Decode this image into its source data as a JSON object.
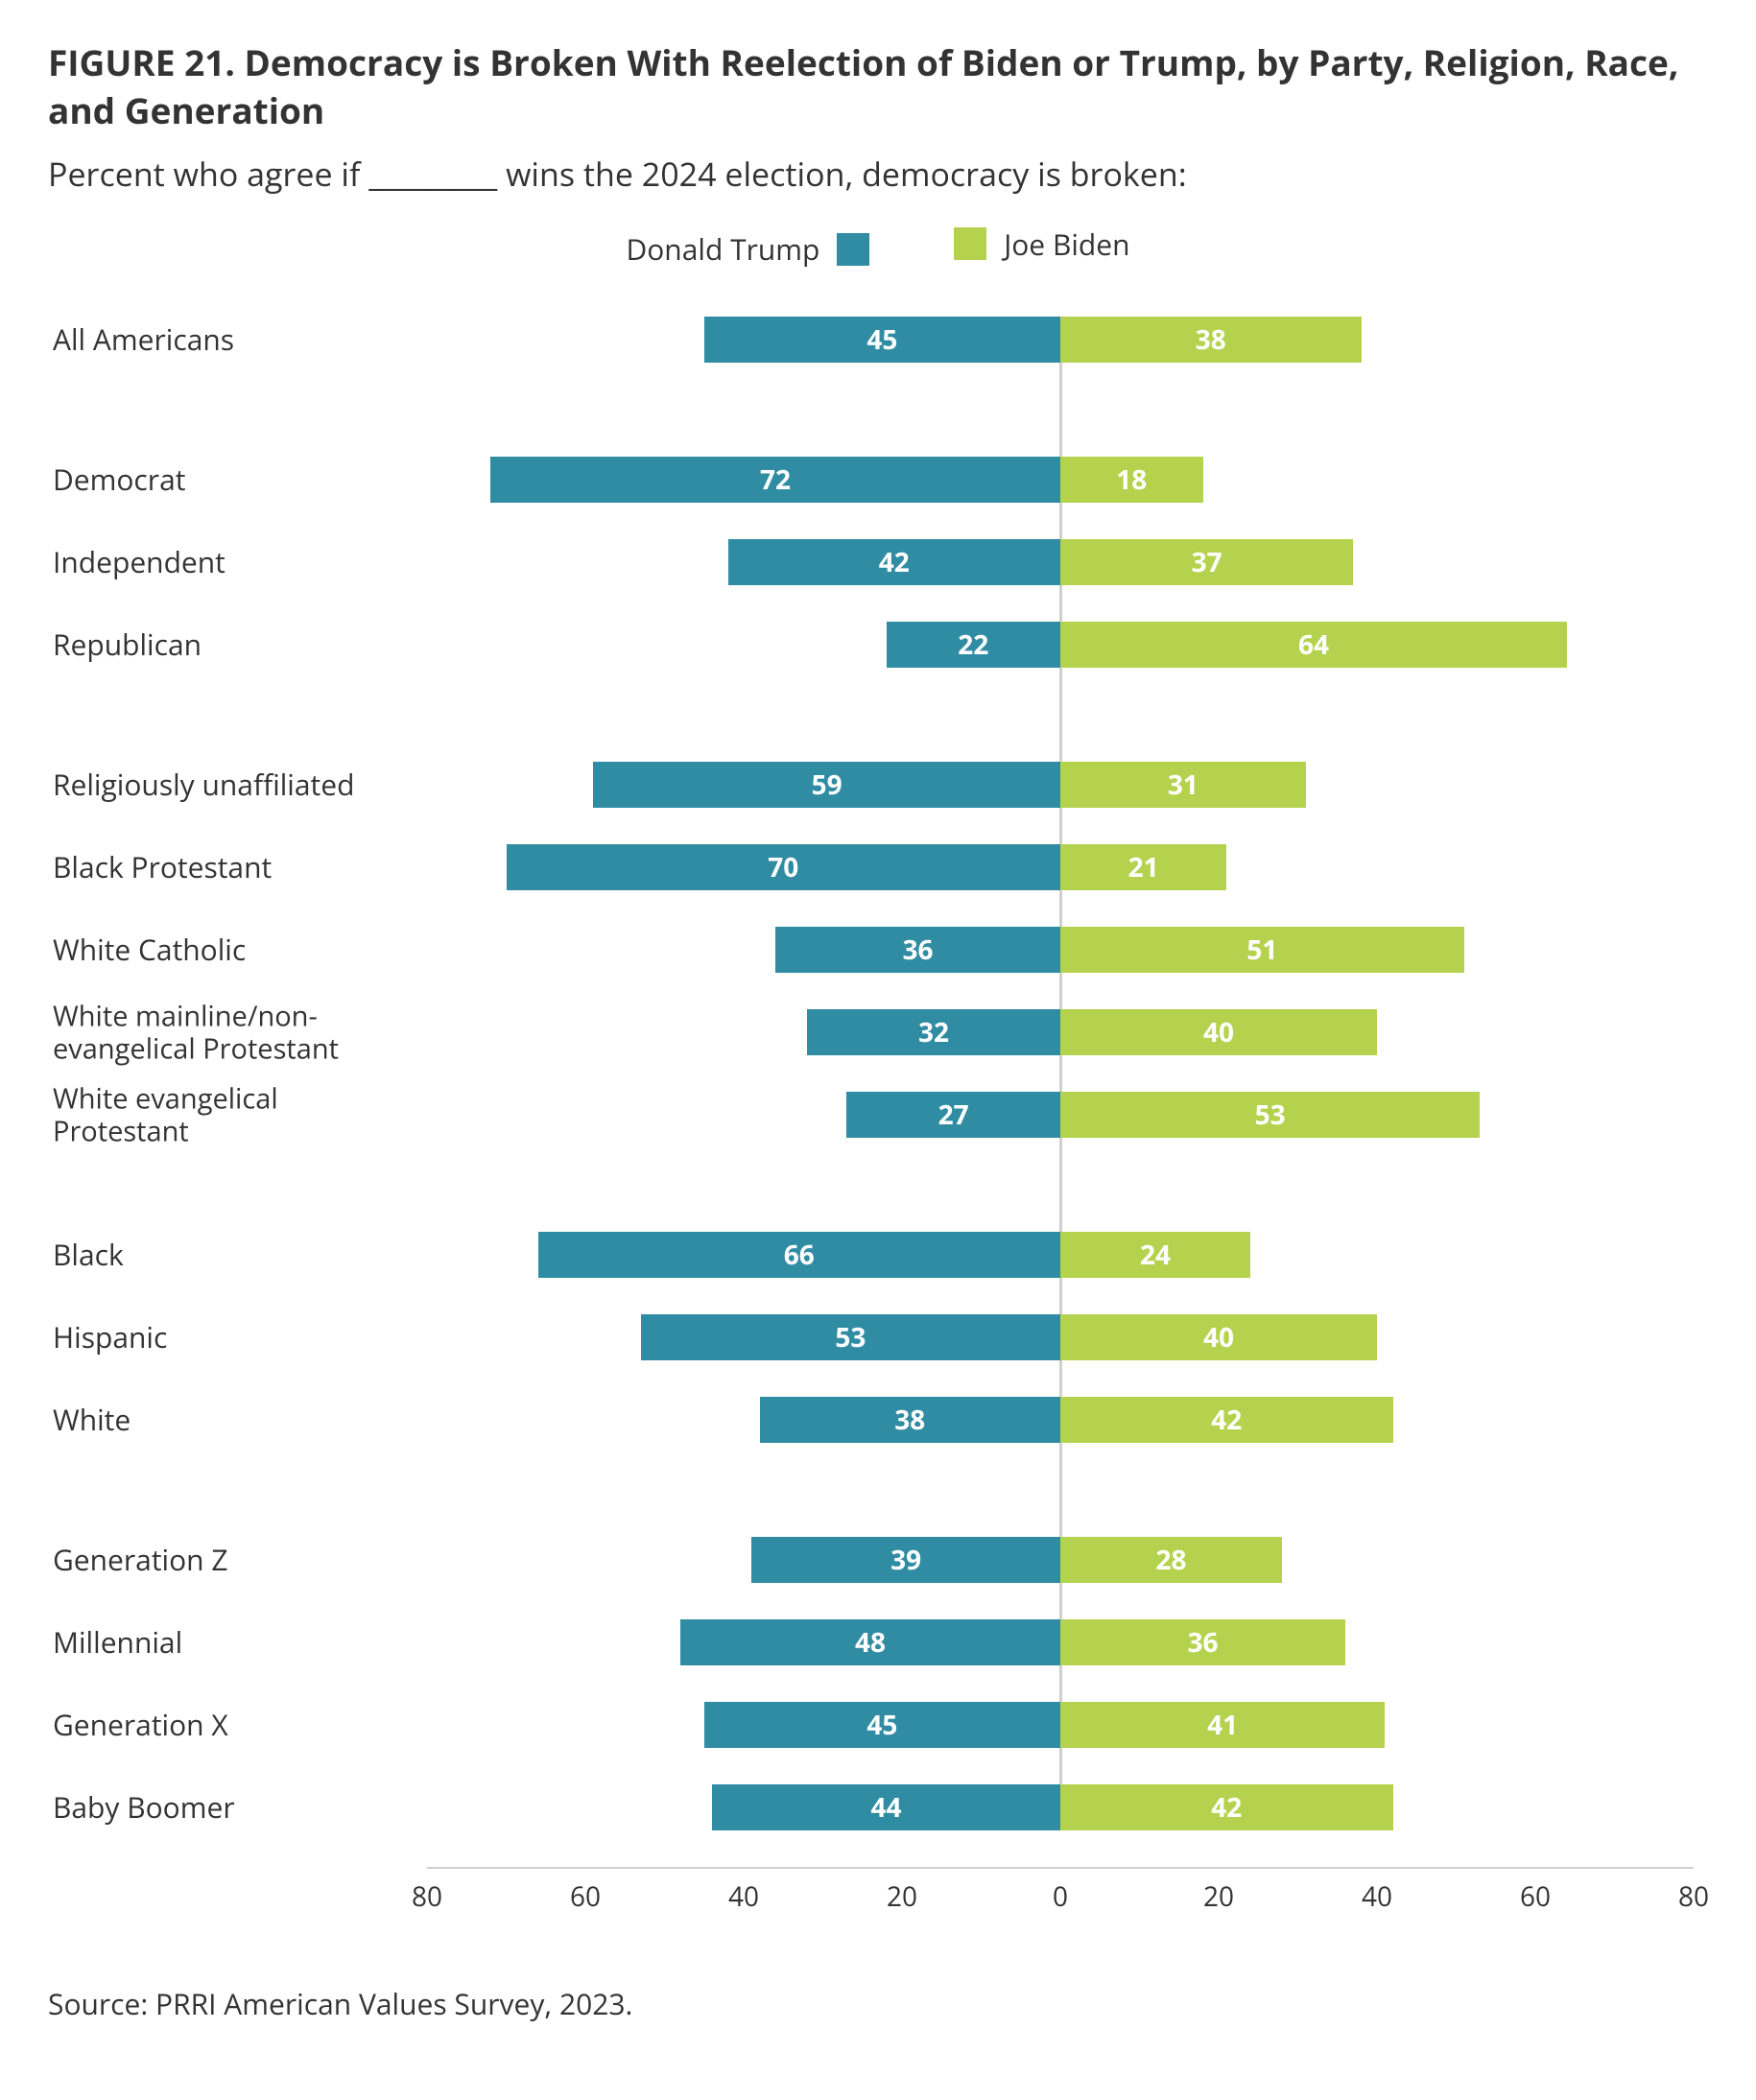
{
  "title": "FIGURE 21.  Democracy is Broken With Reelection of Biden or Trump, by Party, Religion, Race, and Generation",
  "subtitle": "Percent who agree if _________ wins the 2024 election, democracy is broken:",
  "source": "Source: PRRI American Values Survey, 2023.",
  "chart": {
    "type": "diverging-bar",
    "x_max": 80,
    "tick_positions": [
      -80,
      -60,
      -40,
      -20,
      0,
      20,
      40,
      60,
      80
    ],
    "tick_labels": [
      "80",
      "60",
      "40",
      "20",
      "0",
      "20",
      "40",
      "60",
      "80"
    ],
    "colors": {
      "trump": "#2f8ca3",
      "biden": "#b5d24f",
      "axis": "#cfcfcf",
      "text": "#333333",
      "bar_text": "#ffffff",
      "background": "#ffffff"
    },
    "legend": [
      {
        "label": "Donald Trump",
        "key": "trump"
      },
      {
        "label": "Joe Biden",
        "key": "biden"
      }
    ],
    "bar_label_fontsize": 28,
    "row_label_fontsize": 30,
    "groups": [
      {
        "rows": [
          {
            "label": "All Americans",
            "trump": 45,
            "biden": 38
          }
        ]
      },
      {
        "rows": [
          {
            "label": "Democrat",
            "trump": 72,
            "biden": 18
          },
          {
            "label": "Independent",
            "trump": 42,
            "biden": 37
          },
          {
            "label": "Republican",
            "trump": 22,
            "biden": 64
          }
        ]
      },
      {
        "rows": [
          {
            "label": "Religiously unaffiliated",
            "trump": 59,
            "biden": 31
          },
          {
            "label": "Black Protestant",
            "trump": 70,
            "biden": 21
          },
          {
            "label": "White Catholic",
            "trump": 36,
            "biden": 51
          },
          {
            "label": "White mainline/non-evangelical Protestant",
            "trump": 32,
            "biden": 40,
            "twoLine": true
          },
          {
            "label": "White evangelical Protestant",
            "trump": 27,
            "biden": 53,
            "twoLine": true
          }
        ]
      },
      {
        "rows": [
          {
            "label": "Black",
            "trump": 66,
            "biden": 24
          },
          {
            "label": "Hispanic",
            "trump": 53,
            "biden": 40
          },
          {
            "label": "White",
            "trump": 38,
            "biden": 42
          }
        ]
      },
      {
        "rows": [
          {
            "label": "Generation Z",
            "trump": 39,
            "biden": 28
          },
          {
            "label": "Millennial",
            "trump": 48,
            "biden": 36
          },
          {
            "label": "Generation X",
            "trump": 45,
            "biden": 41
          },
          {
            "label": "Baby Boomer",
            "trump": 44,
            "biden": 42
          }
        ]
      }
    ]
  }
}
